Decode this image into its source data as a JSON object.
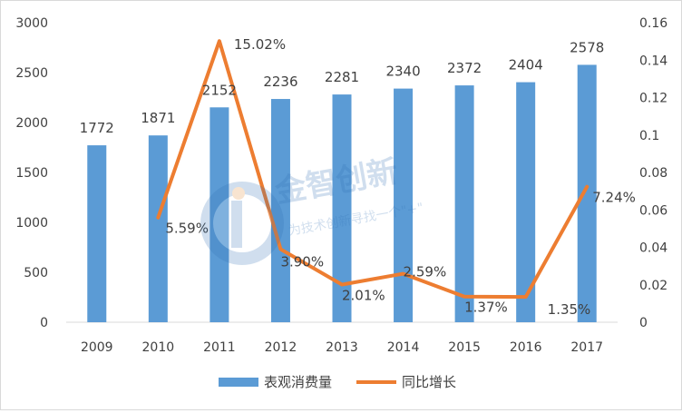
{
  "chart_data": {
    "type": "bar+line",
    "categories": [
      "2009",
      "2010",
      "2011",
      "2012",
      "2013",
      "2014",
      "2015",
      "2016",
      "2017"
    ],
    "series": [
      {
        "name": "表观消费量",
        "type": "bar",
        "axis": "left",
        "color": "#5B9BD5",
        "values": [
          1772,
          1871,
          2152,
          2236,
          2281,
          2340,
          2372,
          2404,
          2578
        ],
        "labels": [
          "1772",
          "1871",
          "2152",
          "2236",
          "2281",
          "2340",
          "2372",
          "2404",
          "2578"
        ]
      },
      {
        "name": "同比增长",
        "type": "line",
        "axis": "right",
        "color": "#ED7D31",
        "values": [
          null,
          0.0559,
          0.1502,
          0.039,
          0.0201,
          0.0259,
          0.0137,
          0.0135,
          0.0724
        ],
        "labels": [
          "",
          "5.59%",
          "15.02%",
          "3.90%",
          "2.01%",
          "2.59%",
          "1.37%",
          "1.35%",
          "7.24%"
        ]
      }
    ],
    "ylim_left": [
      0,
      3000
    ],
    "yticks_left": [
      "0",
      "500",
      "1000",
      "1500",
      "2000",
      "2500",
      "3000"
    ],
    "ylim_right": [
      0,
      0.16
    ],
    "yticks_right": [
      "0",
      "0.02",
      "0.04",
      "0.06",
      "0.08",
      "0.1",
      "0.12",
      "0.14",
      "0.16"
    ],
    "legend_position": "bottom",
    "grid": false
  },
  "watermark": {
    "brand": "金智创新",
    "slogan": "为技术创新寻找一个\"+\"",
    "color": "#2f6fb3"
  }
}
